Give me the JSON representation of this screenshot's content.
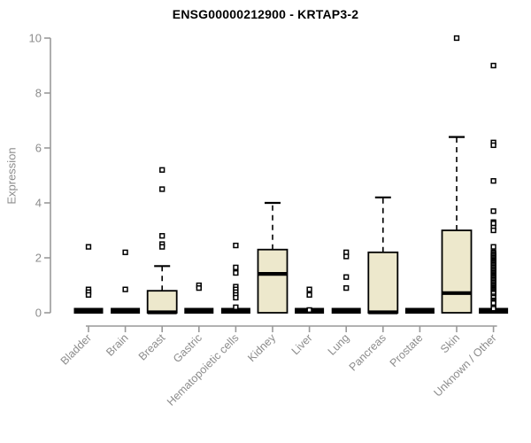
{
  "chart_data": {
    "type": "boxplot",
    "title": "ENSG00000212900 - KRTAP3-2",
    "ylabel": "Expression",
    "xlabel": "",
    "ylim": [
      0,
      10
    ],
    "yticks": [
      0,
      2,
      4,
      6,
      8,
      10
    ],
    "grid": false,
    "legend": "none",
    "colors": {
      "box_fill": "#ede8cc",
      "box_stroke": "#000000",
      "axis_line": "#999999",
      "axis_text": "#8c8c8c",
      "title_text": "#000000",
      "background": "#ffffff"
    },
    "categories": [
      "Bladder",
      "Brain",
      "Breast",
      "Gastric",
      "Hematopoietic cells",
      "Kidney",
      "Liver",
      "Lung",
      "Pancreas",
      "Prostate",
      "Skin",
      "Unknown / Other"
    ],
    "series": [
      {
        "category": "Bladder",
        "q1": 0,
        "median": 0,
        "q3": 0,
        "whisker_low": 0,
        "whisker_high": 0,
        "outliers": [
          2.4,
          0.85,
          0.75,
          0.65
        ]
      },
      {
        "category": "Brain",
        "q1": 0,
        "median": 0,
        "q3": 0,
        "whisker_low": 0,
        "whisker_high": 0,
        "outliers": [
          2.2,
          0.85
        ]
      },
      {
        "category": "Breast",
        "q1": 0,
        "median": 0,
        "q3": 0.8,
        "whisker_low": 0,
        "whisker_high": 1.7,
        "outliers": [
          5.2,
          4.5,
          2.8,
          2.5,
          2.4
        ]
      },
      {
        "category": "Gastric",
        "q1": 0,
        "median": 0,
        "q3": 0,
        "whisker_low": 0,
        "whisker_high": 0,
        "outliers": [
          1.0,
          0.9
        ]
      },
      {
        "category": "Hematopoietic cells",
        "q1": 0,
        "median": 0,
        "q3": 0,
        "whisker_low": 0,
        "whisker_high": 0,
        "outliers": [
          2.45,
          1.65,
          1.45,
          0.95,
          0.85,
          0.75,
          0.65,
          0.55,
          0.2
        ]
      },
      {
        "category": "Kidney",
        "q1": 0,
        "median": 1.4,
        "q3": 2.3,
        "whisker_low": 0,
        "whisker_high": 4.0,
        "outliers": []
      },
      {
        "category": "Liver",
        "q1": 0,
        "median": 0,
        "q3": 0,
        "whisker_low": 0,
        "whisker_high": 0,
        "outliers": [
          0.85,
          0.65,
          0.1
        ]
      },
      {
        "category": "Lung",
        "q1": 0,
        "median": 0,
        "q3": 0,
        "whisker_low": 0,
        "whisker_high": 0,
        "outliers": [
          2.2,
          2.05,
          1.3,
          0.9
        ]
      },
      {
        "category": "Pancreas",
        "q1": 0,
        "median": 0,
        "q3": 2.2,
        "whisker_low": 0,
        "whisker_high": 4.2,
        "outliers": []
      },
      {
        "category": "Prostate",
        "q1": 0,
        "median": 0,
        "q3": 0,
        "whisker_low": 0,
        "whisker_high": 0,
        "outliers": []
      },
      {
        "category": "Skin",
        "q1": 0,
        "median": 0.7,
        "q3": 3.0,
        "whisker_low": 0,
        "whisker_high": 6.4,
        "outliers": [
          10.0
        ]
      },
      {
        "category": "Unknown / Other",
        "q1": 0,
        "median": 0,
        "q3": 0,
        "whisker_low": 0,
        "whisker_high": 0,
        "outliers": [
          9.0,
          6.2,
          6.1,
          4.8,
          3.7,
          3.3,
          3.25,
          3.1,
          3.0,
          2.4,
          2.2,
          2.15,
          2.1,
          2.05,
          2.0,
          1.95,
          1.9,
          1.85,
          1.8,
          1.75,
          1.7,
          1.65,
          1.6,
          1.55,
          1.5,
          1.45,
          1.4,
          1.35,
          1.3,
          1.25,
          1.2,
          1.15,
          1.1,
          1.05,
          1.0,
          0.95,
          0.9,
          0.85,
          0.8,
          0.75,
          0.7,
          0.6,
          0.55,
          0.45,
          0.4,
          0.35,
          0.2,
          0.15
        ]
      }
    ]
  }
}
